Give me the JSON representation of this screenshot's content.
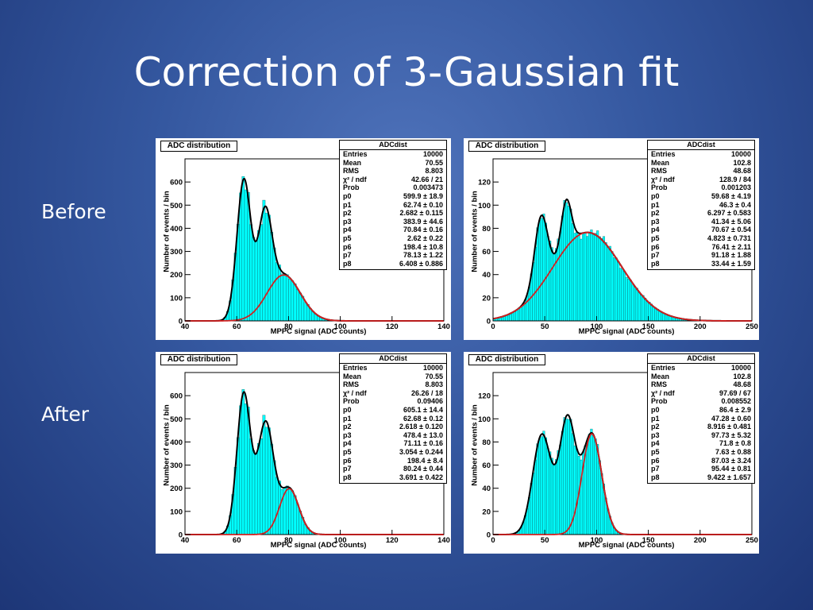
{
  "slide": {
    "title": "Correction of 3-Gaussian fit",
    "row_labels": [
      "Before",
      "After"
    ]
  },
  "chart_data": [
    {
      "type": "bar",
      "title": "ADC distribution",
      "xlabel": "MPPC signal (ADC counts)",
      "ylabel": "Number of events / bin",
      "xlim": [
        40,
        140
      ],
      "ylim": [
        0,
        700
      ],
      "xticks": [
        40,
        60,
        80,
        100,
        120,
        140
      ],
      "yticks": [
        0,
        100,
        200,
        300,
        400,
        500,
        600
      ],
      "fit_color": "#d32020",
      "stats": {
        "name": "ADCdist",
        "rows": [
          [
            "Entries",
            "10000"
          ],
          [
            "Mean",
            "70.55"
          ],
          [
            "RMS",
            "8.803"
          ],
          [
            "χ² / ndf",
            "42.66 / 21"
          ],
          [
            "Prob",
            "0.003473"
          ],
          [
            "p0",
            "599.9 ± 18.9"
          ],
          [
            "p1",
            "62.74 ± 0.10"
          ],
          [
            "p2",
            "2.682 ± 0.115"
          ],
          [
            "p3",
            "383.9 ± 44.6"
          ],
          [
            "p4",
            "70.84 ± 0.16"
          ],
          [
            "p5",
            "2.62 ± 0.22"
          ],
          [
            "p6",
            "198.4 ± 10.8"
          ],
          [
            "p7",
            "78.13 ± 1.22"
          ],
          [
            "p8",
            "6.408 ± 0.886"
          ]
        ]
      },
      "fit": {
        "p0": 599.9,
        "p1": 62.74,
        "p2": 2.682,
        "p3": 383.9,
        "p4": 70.84,
        "p5": 2.62,
        "p6": 198.4,
        "p7": 78.13,
        "p8": 6.408
      }
    },
    {
      "type": "bar",
      "title": "ADC distribution",
      "xlabel": "MPPC signal (ADC counts)",
      "ylabel": "Number of events / bin",
      "xlim": [
        0,
        250
      ],
      "ylim": [
        0,
        140
      ],
      "xticks": [
        0,
        50,
        100,
        150,
        200,
        250
      ],
      "yticks": [
        0,
        20,
        40,
        60,
        80,
        100,
        120
      ],
      "fit_color": "#d32020",
      "stats": {
        "name": "ADCdist",
        "rows": [
          [
            "Entries",
            "10000"
          ],
          [
            "Mean",
            "102.8"
          ],
          [
            "RMS",
            "48.68"
          ],
          [
            "χ² / ndf",
            "128.9 / 84"
          ],
          [
            "Prob",
            "0.001203"
          ],
          [
            "p0",
            "59.68 ± 4.19"
          ],
          [
            "p1",
            "46.3 ± 0.4"
          ],
          [
            "p2",
            "6.297 ± 0.583"
          ],
          [
            "p3",
            "41.34 ± 5.06"
          ],
          [
            "p4",
            "70.67 ± 0.54"
          ],
          [
            "p5",
            "4.823 ± 0.731"
          ],
          [
            "p6",
            "76.41 ± 2.11"
          ],
          [
            "p7",
            "91.18 ± 1.88"
          ],
          [
            "p8",
            "33.44 ± 1.59"
          ]
        ]
      },
      "fit": {
        "p0": 59.68,
        "p1": 46.3,
        "p2": 6.297,
        "p3": 41.34,
        "p4": 70.67,
        "p5": 4.823,
        "p6": 76.41,
        "p7": 91.18,
        "p8": 33.44
      }
    },
    {
      "type": "bar",
      "title": "ADC distribution",
      "xlabel": "MPPC signal (ADC counts)",
      "ylabel": "Number of events / bin",
      "xlim": [
        40,
        140
      ],
      "ylim": [
        0,
        700
      ],
      "xticks": [
        40,
        60,
        80,
        100,
        120,
        140
      ],
      "yticks": [
        0,
        100,
        200,
        300,
        400,
        500,
        600
      ],
      "fit_color": "#d32020",
      "stats": {
        "name": "ADCdist",
        "rows": [
          [
            "Entries",
            "10000"
          ],
          [
            "Mean",
            "70.55"
          ],
          [
            "RMS",
            "8.803"
          ],
          [
            "χ² / ndf",
            "26.26 / 18"
          ],
          [
            "Prob",
            "0.09406"
          ],
          [
            "p0",
            "605.1 ± 14.4"
          ],
          [
            "p1",
            "62.68 ± 0.12"
          ],
          [
            "p2",
            "2.618 ± 0.120"
          ],
          [
            "p3",
            "478.4 ± 13.0"
          ],
          [
            "p4",
            "71.11 ± 0.16"
          ],
          [
            "p5",
            "3.054 ± 0.244"
          ],
          [
            "p6",
            "198.4 ± 8.4"
          ],
          [
            "p7",
            "80.24 ± 0.44"
          ],
          [
            "p8",
            "3.691 ± 0.422"
          ]
        ]
      },
      "fit": {
        "p0": 605.1,
        "p1": 62.68,
        "p2": 2.618,
        "p3": 478.4,
        "p4": 71.11,
        "p5": 3.054,
        "p6": 198.4,
        "p7": 80.24,
        "p8": 3.691
      }
    },
    {
      "type": "bar",
      "title": "ADC distribution",
      "xlabel": "MPPC signal (ADC counts)",
      "ylabel": "Number of events / bin",
      "xlim": [
        0,
        250
      ],
      "ylim": [
        0,
        140
      ],
      "xticks": [
        0,
        50,
        100,
        150,
        200,
        250
      ],
      "yticks": [
        0,
        20,
        40,
        60,
        80,
        100,
        120
      ],
      "fit_color": "#d32020",
      "stats": {
        "name": "ADCdist",
        "rows": [
          [
            "Entries",
            "10000"
          ],
          [
            "Mean",
            "102.8"
          ],
          [
            "RMS",
            "48.68"
          ],
          [
            "χ² / ndf",
            "97.69 / 67"
          ],
          [
            "Prob",
            "0.008552"
          ],
          [
            "p0",
            "86.4 ± 2.9"
          ],
          [
            "p1",
            "47.28 ± 0.60"
          ],
          [
            "p2",
            "8.916 ± 0.481"
          ],
          [
            "p3",
            "97.73 ± 5.32"
          ],
          [
            "p4",
            "71.8 ± 0.8"
          ],
          [
            "p5",
            "7.63 ± 0.88"
          ],
          [
            "p6",
            "87.03 ± 3.24"
          ],
          [
            "p7",
            "95.44 ± 0.81"
          ],
          [
            "p8",
            "9.422 ± 1.657"
          ]
        ]
      },
      "fit": {
        "p0": 86.4,
        "p1": 47.28,
        "p2": 8.916,
        "p3": 97.73,
        "p4": 71.8,
        "p5": 7.63,
        "p6": 87.03,
        "p7": 95.44,
        "p8": 9.422
      }
    }
  ]
}
